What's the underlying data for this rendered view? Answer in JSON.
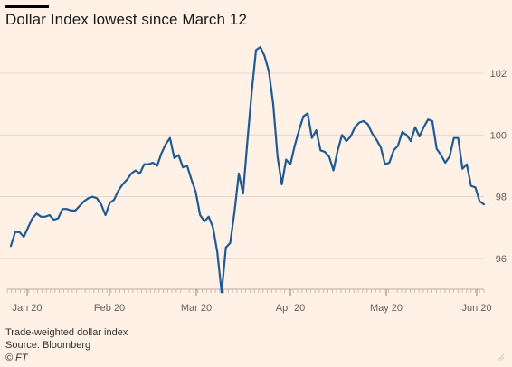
{
  "title": "Dollar Index lowest since March 12",
  "footer": {
    "note": "Trade-weighted dollar index",
    "source": "Source: Bloomberg",
    "credit": "© FT"
  },
  "colors": {
    "background": "#fff1e5",
    "line": "#1f5a96",
    "grid": "#e3d6ca",
    "axis_text": "#66605c"
  },
  "chart_data": {
    "type": "line",
    "title": "Dollar Index lowest since March 12",
    "xlabel": "",
    "ylabel": "",
    "ylim": [
      95,
      103.2
    ],
    "yticks": [
      96,
      98,
      100,
      102
    ],
    "xtick_labels": [
      "Jan 20",
      "Feb 20",
      "Mar 20",
      "Apr 20",
      "May 20",
      "Jun 20"
    ],
    "grid": true,
    "series": [
      {
        "name": "",
        "values": [
          96.4,
          96.85,
          96.85,
          96.7,
          97.0,
          97.3,
          97.45,
          97.35,
          97.35,
          97.4,
          97.25,
          97.3,
          97.6,
          97.6,
          97.55,
          97.55,
          97.7,
          97.85,
          97.95,
          98.0,
          97.95,
          97.75,
          97.4,
          97.8,
          97.9,
          98.2,
          98.4,
          98.55,
          98.75,
          98.85,
          98.75,
          99.05,
          99.05,
          99.1,
          99.0,
          99.4,
          99.7,
          99.9,
          99.25,
          99.35,
          98.95,
          99.0,
          98.55,
          98.15,
          97.4,
          97.2,
          97.35,
          97.0,
          96.2,
          94.9,
          96.35,
          96.5,
          97.5,
          98.75,
          98.1,
          99.8,
          101.4,
          102.75,
          102.85,
          102.55,
          102.05,
          101.0,
          99.3,
          98.4,
          99.2,
          99.05,
          99.65,
          100.15,
          100.6,
          100.7,
          99.9,
          100.15,
          99.5,
          99.45,
          99.3,
          98.85,
          99.5,
          100.0,
          99.8,
          99.95,
          100.25,
          100.4,
          100.45,
          100.35,
          100.05,
          99.85,
          99.6,
          99.05,
          99.1,
          99.5,
          99.65,
          100.1,
          100.0,
          99.8,
          100.25,
          99.95,
          100.25,
          100.5,
          100.45,
          99.55,
          99.35,
          99.1,
          99.3,
          99.9,
          99.9,
          98.9,
          99.05,
          98.35,
          98.3,
          97.85,
          97.75
        ]
      }
    ]
  }
}
